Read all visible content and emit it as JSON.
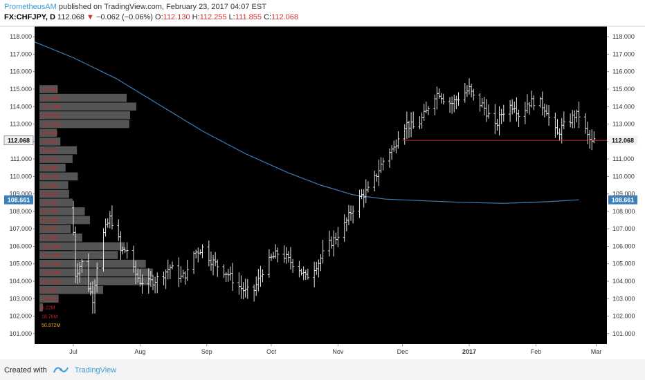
{
  "header": {
    "author": "PrometheusAM",
    "published": "published on TradingView.com, February 23, 2017 04:07 EST",
    "symbol": "FX:CHFJPY, D",
    "last": "112.068",
    "change": "−0.062 (−0.06%)",
    "o_label": "O:",
    "o_value": "112.130",
    "h_label": "H:",
    "h_value": "112.255",
    "l_label": "L:",
    "l_value": "111.855",
    "c_label": "C:",
    "c_value": "112.068",
    "down_arrow": "▼"
  },
  "footer": {
    "created_with": "Created with",
    "brand": "TradingView",
    "logo_icon": "tradingview-logo-icon"
  },
  "colors": {
    "background": "#000000",
    "bar": "#e6e6e6",
    "ma_line": "#3d7fb8",
    "price_line": "#c62828",
    "volume_profile": "#5e5e5e",
    "profile_text": "#c62828"
  },
  "chart_data": {
    "type": "bar",
    "symbol": "FX:CHFJPY",
    "timeframe": "D",
    "ylim": [
      100.4,
      118.6
    ],
    "y_ticks": [
      "101.000",
      "102.000",
      "103.000",
      "104.000",
      "105.000",
      "106.000",
      "107.000",
      "108.000",
      "109.000",
      "110.000",
      "111.000",
      "112.000",
      "113.000",
      "114.000",
      "115.000",
      "116.000",
      "117.000",
      "118.000"
    ],
    "x_ticks": [
      {
        "label": "Jul",
        "day": 0
      },
      {
        "label": "Aug",
        "day": 31
      },
      {
        "label": "Sep",
        "day": 62
      },
      {
        "label": "Oct",
        "day": 92
      },
      {
        "label": "Nov",
        "day": 123
      },
      {
        "label": "Dec",
        "day": 153
      },
      {
        "label": "2017",
        "day": 184
      },
      {
        "label": "Feb",
        "day": 215
      },
      {
        "label": "Mar",
        "day": 243
      }
    ],
    "x_range": [
      -18,
      248
    ],
    "current_price": {
      "value": 112.068,
      "label": "112.068"
    },
    "ma_label": {
      "value": 108.661,
      "label": "108.661"
    },
    "ma_line": [
      {
        "day": -18,
        "value": 117.7
      },
      {
        "day": 0,
        "value": 116.8
      },
      {
        "day": 20,
        "value": 115.6
      },
      {
        "day": 40,
        "value": 114.1
      },
      {
        "day": 60,
        "value": 112.6
      },
      {
        "day": 80,
        "value": 111.3
      },
      {
        "day": 100,
        "value": 110.2
      },
      {
        "day": 115,
        "value": 109.5
      },
      {
        "day": 130,
        "value": 108.95
      },
      {
        "day": 145,
        "value": 108.7
      },
      {
        "day": 160,
        "value": 108.62
      },
      {
        "day": 180,
        "value": 108.52
      },
      {
        "day": 200,
        "value": 108.46
      },
      {
        "day": 220,
        "value": 108.55
      },
      {
        "day": 235,
        "value": 108.661
      }
    ],
    "price_path": [
      {
        "day": -2,
        "value": 108.2
      },
      {
        "day": -1,
        "value": 107.5
      },
      {
        "day": 0,
        "value": 106.8
      },
      {
        "day": 1,
        "value": 104.4
      },
      {
        "day": 3,
        "value": 104.9
      },
      {
        "day": 5,
        "value": 105.2
      },
      {
        "day": 7,
        "value": 103.7
      },
      {
        "day": 9,
        "value": 103.0
      },
      {
        "day": 11,
        "value": 104.9
      },
      {
        "day": 14,
        "value": 106.7
      },
      {
        "day": 17,
        "value": 107.6
      },
      {
        "day": 20,
        "value": 107.0
      },
      {
        "day": 22,
        "value": 105.7
      },
      {
        "day": 25,
        "value": 105.8
      },
      {
        "day": 28,
        "value": 104.6
      },
      {
        "day": 31,
        "value": 104.0
      },
      {
        "day": 35,
        "value": 103.9
      },
      {
        "day": 40,
        "value": 104.2
      },
      {
        "day": 45,
        "value": 104.8
      },
      {
        "day": 50,
        "value": 104.2
      },
      {
        "day": 53,
        "value": 104.5
      },
      {
        "day": 56,
        "value": 105.6
      },
      {
        "day": 60,
        "value": 105.9
      },
      {
        "day": 64,
        "value": 105.2
      },
      {
        "day": 68,
        "value": 104.8
      },
      {
        "day": 72,
        "value": 104.4
      },
      {
        "day": 76,
        "value": 103.8
      },
      {
        "day": 80,
        "value": 103.4
      },
      {
        "day": 84,
        "value": 103.5
      },
      {
        "day": 88,
        "value": 104.6
      },
      {
        "day": 92,
        "value": 105.3
      },
      {
        "day": 96,
        "value": 105.7
      },
      {
        "day": 100,
        "value": 105.2
      },
      {
        "day": 104,
        "value": 104.9
      },
      {
        "day": 108,
        "value": 104.2
      },
      {
        "day": 110,
        "value": 104.5
      },
      {
        "day": 114,
        "value": 105.1
      },
      {
        "day": 118,
        "value": 106.0
      },
      {
        "day": 122,
        "value": 106.5
      },
      {
        "day": 126,
        "value": 107.2
      },
      {
        "day": 130,
        "value": 108.2
      },
      {
        "day": 134,
        "value": 108.9
      },
      {
        "day": 138,
        "value": 109.3
      },
      {
        "day": 142,
        "value": 110.4
      },
      {
        "day": 146,
        "value": 111.4
      },
      {
        "day": 149,
        "value": 111.6
      },
      {
        "day": 152,
        "value": 112.8
      },
      {
        "day": 155,
        "value": 113.0
      },
      {
        "day": 158,
        "value": 112.8
      },
      {
        "day": 161,
        "value": 113.1
      },
      {
        "day": 164,
        "value": 113.7
      },
      {
        "day": 167,
        "value": 114.6
      },
      {
        "day": 170,
        "value": 114.8
      },
      {
        "day": 173,
        "value": 114.3
      },
      {
        "day": 176,
        "value": 114.2
      },
      {
        "day": 180,
        "value": 114.6
      },
      {
        "day": 184,
        "value": 115.0
      },
      {
        "day": 187,
        "value": 114.3
      },
      {
        "day": 190,
        "value": 114.1
      },
      {
        "day": 193,
        "value": 113.5
      },
      {
        "day": 196,
        "value": 112.8
      },
      {
        "day": 199,
        "value": 113.6
      },
      {
        "day": 202,
        "value": 114.0
      },
      {
        "day": 205,
        "value": 114.1
      },
      {
        "day": 208,
        "value": 113.3
      },
      {
        "day": 211,
        "value": 114.2
      },
      {
        "day": 214,
        "value": 114.3
      },
      {
        "day": 217,
        "value": 114.2
      },
      {
        "day": 220,
        "value": 113.8
      },
      {
        "day": 222,
        "value": 112.9
      },
      {
        "day": 225,
        "value": 112.4
      },
      {
        "day": 227,
        "value": 112.8
      },
      {
        "day": 230,
        "value": 113.1
      },
      {
        "day": 233,
        "value": 113.5
      },
      {
        "day": 235,
        "value": 113.5
      },
      {
        "day": 237,
        "value": 112.9
      },
      {
        "day": 239,
        "value": 112.3
      },
      {
        "day": 241,
        "value": 111.9
      },
      {
        "day": 242,
        "value": 112.068
      }
    ],
    "volume_profile": [
      {
        "price": 115.0,
        "width": 0.21,
        "label": "29.00M"
      },
      {
        "price": 114.5,
        "width": 1.0,
        "label": "111.64M"
      },
      {
        "price": 114.0,
        "width": 1.11,
        "label": "117.73M"
      },
      {
        "price": 113.5,
        "width": 1.04,
        "label": "116.86M"
      },
      {
        "price": 113.0,
        "width": 1.03,
        "label": "114.92M"
      },
      {
        "price": 112.5,
        "width": 0.2,
        "label": "29.55M"
      },
      {
        "price": 112.0,
        "width": 0.24,
        "label": "31.63M"
      },
      {
        "price": 111.5,
        "width": 0.43,
        "label": "48.68M"
      },
      {
        "price": 111.0,
        "width": 0.38,
        "label": "44.71M"
      },
      {
        "price": 110.5,
        "width": 0.3,
        "label": "35.98M"
      },
      {
        "price": 110.0,
        "width": 0.44,
        "label": "49.17M"
      },
      {
        "price": 109.5,
        "width": 0.33,
        "label": "37.42M"
      },
      {
        "price": 109.0,
        "width": 0.34,
        "label": "38.42M"
      },
      {
        "price": 108.5,
        "width": 0.38,
        "label": "44.14M"
      },
      {
        "price": 108.0,
        "width": 0.52,
        "label": "61.17M"
      },
      {
        "price": 107.5,
        "width": 0.58,
        "label": "68.02M"
      },
      {
        "price": 107.0,
        "width": 0.36,
        "label": "42.33M"
      },
      {
        "price": 106.5,
        "width": 0.49,
        "label": "54.49M"
      },
      {
        "price": 106.0,
        "width": 0.98,
        "label": "109.25M"
      },
      {
        "price": 105.5,
        "width": 0.9,
        "label": "101.24M"
      },
      {
        "price": 105.0,
        "width": 1.22,
        "label": "136.70M"
      },
      {
        "price": 104.5,
        "width": 1.3,
        "label": "145.89M"
      },
      {
        "price": 104.0,
        "width": 1.27,
        "label": "141.58M"
      },
      {
        "price": 103.5,
        "width": 0.73,
        "label": "82.60M"
      },
      {
        "price": 103.0,
        "width": 0.22,
        "label": "28.91M"
      },
      {
        "price": 102.5,
        "width": 0.04,
        "label": "6.22M"
      },
      {
        "price": 102.0,
        "width": 0.0,
        "label": "18.76M"
      },
      {
        "price": 101.5,
        "width": 0.0,
        "label": "50.972M"
      }
    ]
  }
}
